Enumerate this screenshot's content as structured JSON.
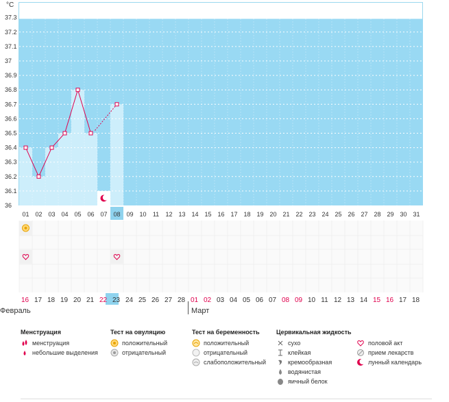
{
  "chart_data": {
    "type": "line",
    "unit_label": "°C",
    "y_ticks": [
      "37.3",
      "37.2",
      "37.1",
      "37",
      "36.9",
      "36.8",
      "36.7",
      "36.6",
      "36.5",
      "36.4",
      "36.3",
      "36.2",
      "36.1",
      "36"
    ],
    "ylim": [
      36.0,
      37.3
    ],
    "cycle_days": [
      "01",
      "02",
      "03",
      "04",
      "05",
      "06",
      "07",
      "08",
      "09",
      "10",
      "11",
      "12",
      "13",
      "14",
      "15",
      "16",
      "17",
      "18",
      "19",
      "20",
      "21",
      "22",
      "23",
      "24",
      "25",
      "26",
      "27",
      "28",
      "29",
      "30",
      "31"
    ],
    "current_day": "08",
    "temperatures": [
      36.4,
      36.2,
      36.4,
      36.5,
      36.8,
      36.5,
      null,
      36.7
    ],
    "dashed_connection": {
      "from_day": "06",
      "to_day": "08"
    },
    "lunar_marker_day": "07",
    "ovulation_positive_day": "01",
    "intercourse_days": [
      "01",
      "08"
    ],
    "dates": [
      "16",
      "17",
      "18",
      "19",
      "20",
      "21",
      "22",
      "23",
      "24",
      "25",
      "26",
      "27",
      "28",
      "01",
      "02",
      "03",
      "04",
      "05",
      "06",
      "07",
      "08",
      "09",
      "10",
      "11",
      "12",
      "13",
      "14",
      "15",
      "16",
      "17",
      "18"
    ],
    "weekend_dates": [
      0,
      6,
      13,
      14,
      20,
      21,
      27,
      28
    ],
    "current_date_index": 7,
    "months": [
      {
        "label": "Февраль",
        "start_index": 0
      },
      {
        "label": "Март",
        "start_index": 13
      }
    ],
    "colors": {
      "sky": "#99d9f3",
      "bar": "#cdeefb",
      "line": "#e0004d",
      "weekend": "#e0004d",
      "current": "#8fd3ee"
    }
  },
  "legend": {
    "menstruation": {
      "title": "Менструация",
      "items": [
        "менструация",
        "небольшие выделения"
      ]
    },
    "ovulation": {
      "title": "Тест на овуляцию",
      "items": [
        "положительный",
        "отрицательный"
      ]
    },
    "pregnancy": {
      "title": "Тест на беременность",
      "items": [
        "положительный",
        "отрицательный",
        "слабоположительный"
      ]
    },
    "cervical": {
      "title": "Цервикальная жидкость",
      "items": [
        "сухо",
        "клейкая",
        "кремообразная",
        "водянистая",
        "яичный белок"
      ]
    },
    "other": {
      "items": [
        "половой акт",
        "прием лекарств",
        "лунный календарь"
      ]
    }
  }
}
